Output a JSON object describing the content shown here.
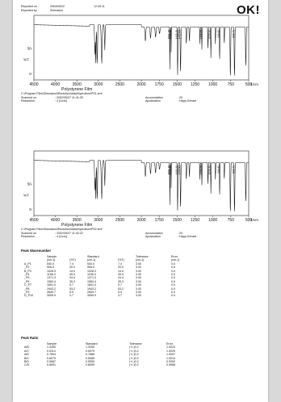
{
  "header": {
    "reported_on_label": "Reported on :",
    "reported_on_date": "2004/05/22",
    "reported_on_time": "12:49:11",
    "reported_by_label": "Reported by :",
    "reported_by_value": "Shimadzu",
    "status": "OK!"
  },
  "spectrum1": {
    "yaxis_label": "%T",
    "yticks": [
      "50-",
      "0-"
    ],
    "xticks": [
      "4500",
      "4000",
      "3500",
      "3000",
      "2500",
      "2000",
      "1750",
      "1500",
      "1250",
      "1000",
      "750",
      "500"
    ],
    "xunit": "1/cm",
    "film_title": "Polystyrene Film",
    "file_path": "C:\\Program Files\\Shimadzu\\IRsolution\\data\\Hydrolism\\PS1.smf",
    "scanned_on_label": "Scanned on",
    "scanned_on_value": ": 2002/05/27 11:41:35",
    "accumulation_label": "Accumulation",
    "accumulation_value": ": 20",
    "resolution_label": "Resolution",
    "resolution_value": ": 4 [1/cm]",
    "apodization_label": "Apodization",
    "apodization_value": ": Happ-Genzel",
    "peak_labels": [
      "1601.18",
      "1583.40",
      "1493.40",
      "1452.81",
      "1154.56",
      "1028.30",
      "906.80",
      "698.79"
    ]
  },
  "spectrum2": {
    "yaxis_label": "%T",
    "yticks": [
      "50-",
      "0-"
    ],
    "xticks": [
      "4500",
      "4000",
      "3500",
      "3000",
      "2500",
      "2000",
      "1750",
      "1500",
      "1250",
      "1000",
      "750",
      "500"
    ],
    "xunit": "1/cm",
    "film_title": "Polystyrene Film",
    "file_path": "C:\\Program Files\\Shimadzu\\IRsolution\\data\\Hydrolism\\PS2.smf",
    "scanned_on_label": "Scanned on",
    "scanned_on_value": ": 2002/05/27 11:42:22",
    "accumulation_label": "Accumulation",
    "accumulation_value": ": 20",
    "resolution_label": "Resolution",
    "resolution_value": ": 4 [1/cm]",
    "apodization_label": "Apodization",
    "apodization_value": ": Happ-Genzel",
    "peak_labels": [
      "1601.18",
      "1583.40",
      "1493.40",
      "1452.81",
      "1154.56",
      "1028.30",
      "906.80",
      "698.79"
    ]
  },
  "peak_wavenumber": {
    "title": "Peak Wavenumber",
    "headers": [
      "",
      "Sample",
      "",
      "Standard",
      "",
      "Tolerance",
      "Error"
    ],
    "subheaders": [
      "",
      "(cm-1)",
      "(%T)",
      "(cm-1)",
      "(%T)",
      "(cm-1)",
      "(cm-1)"
    ],
    "rows": [
      [
        "A_P1",
        "540.0",
        "7.4",
        "540.0",
        "7.4",
        "3.00",
        "0.0"
      ],
      [
        "_P2",
        "906.5",
        "20.0",
        "906.5",
        "20.0",
        "3.00",
        "0.0"
      ],
      [
        "B_P3",
        "1028.3",
        "14.0",
        "1028.3",
        "14.0",
        "3.00",
        "0.0"
      ],
      [
        "_P4",
        "1155.3",
        "49.0",
        "1155.3",
        "49.0",
        "3.00",
        "0.0"
      ],
      [
        "_P5",
        "1371.3",
        "24.4",
        "1371.3",
        "24.4",
        "3.00",
        "0.0"
      ],
      [
        "_P6",
        "1583.4",
        "35.3",
        "1583.4",
        "35.3",
        "3.00",
        "0.0"
      ],
      [
        "C_P7",
        "1601.0",
        "5.7",
        "1601.0",
        "5.7",
        "3.00",
        "0.0"
      ],
      [
        "_P8",
        "1943.2",
        "53.2",
        "1943.2",
        "53.2",
        "3.00",
        "0.0"
      ],
      [
        "_P9",
        "2849.7",
        "5.9",
        "2849.7",
        "5.9",
        "3.00",
        "0.0"
      ],
      [
        "D_P10",
        "3059.9",
        "3.7",
        "3059.9",
        "3.7",
        "3.00",
        "0.0"
      ]
    ]
  },
  "peak_ratio": {
    "title": "Peak Ratio",
    "headers": [
      "",
      "Sample",
      "Standard",
      "Tolerance",
      "Error"
    ],
    "rows": [
      [
        "A/B",
        "1.3250",
        "1.3250",
        "(+/-)0.2",
        "1.0023"
      ],
      [
        "A/C",
        "0.5114",
        "0.5079",
        "(+/-)0.2",
        "1.0029"
      ],
      [
        "A/D",
        "0.7894",
        "0.7886",
        "(+/-)0.2",
        "1.0007"
      ],
      [
        "B/C",
        "0.6079",
        "0.6085",
        "(+/-)0.2",
        "1.0014"
      ],
      [
        "B/D",
        "0.5587",
        "0.5950",
        "(+/-)0.2",
        "0.9392"
      ],
      [
        "C/D",
        "0.8091",
        "0.8059",
        "(+/-)0.2",
        "0.9968"
      ]
    ]
  }
}
